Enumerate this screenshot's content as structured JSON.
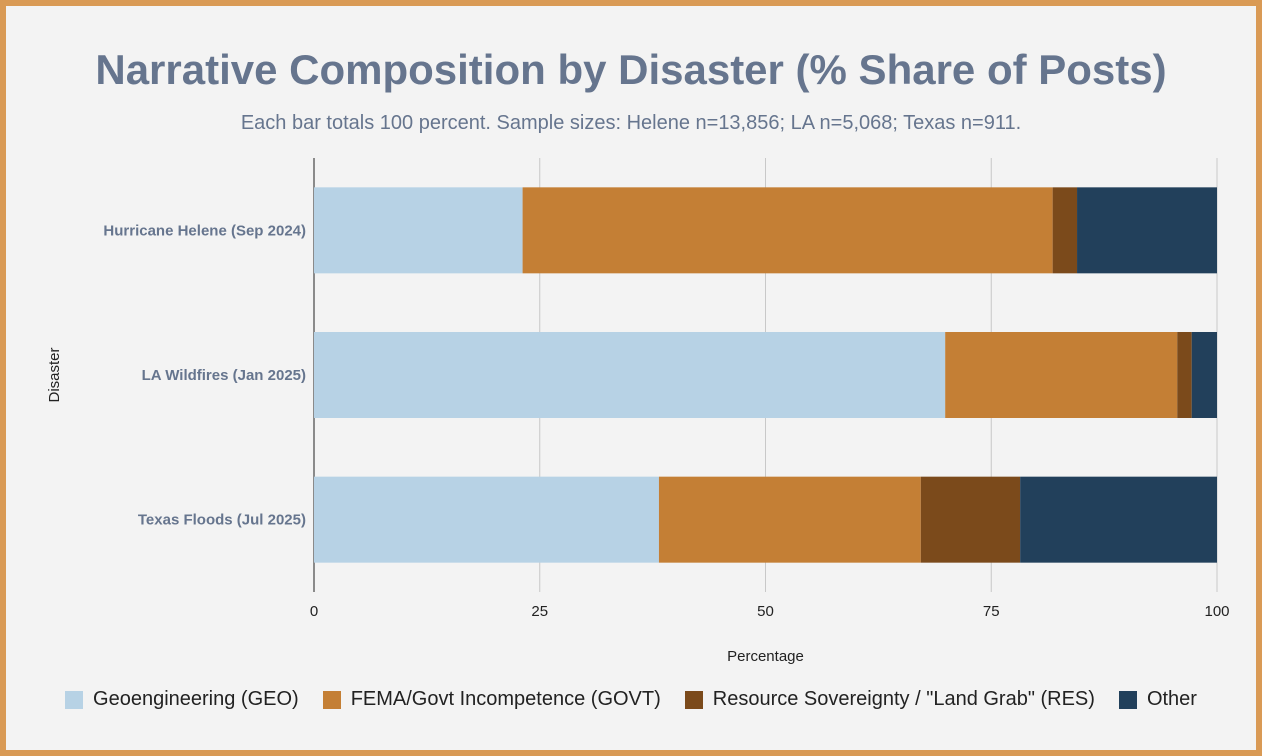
{
  "chart_data": {
    "type": "bar",
    "orientation": "horizontal",
    "stacked": true,
    "title": "Narrative Composition by Disaster (% Share of Posts)",
    "subtitle": "Each bar totals 100 percent. Sample sizes: Helene n=13,856; LA n=5,068; Texas n=911.",
    "xlabel": "Percentage",
    "ylabel": "Disaster",
    "xlim": [
      0,
      100
    ],
    "xticks": [
      0,
      25,
      50,
      75,
      100
    ],
    "grid": true,
    "legend_position": "bottom",
    "categories": [
      "Hurricane Helene (Sep 2024)",
      "LA Wildfires (Jan 2025)",
      "Texas Floods (Jul 2025)"
    ],
    "series": [
      {
        "name": "Geoengineering (GEO)",
        "color": "#b7d2e5",
        "values": [
          23.1,
          69.9,
          38.2
        ]
      },
      {
        "name": "FEMA/Govt Incompetence (GOVT)",
        "color": "#c47f35",
        "values": [
          58.7,
          25.7,
          29.0
        ]
      },
      {
        "name": "Resource Sovereignty / \"Land Grab\" (RES)",
        "color": "#7b4a1b",
        "values": [
          2.7,
          1.6,
          11.0
        ]
      },
      {
        "name": "Other",
        "color": "#22405b",
        "values": [
          15.5,
          2.8,
          21.8
        ]
      }
    ]
  }
}
